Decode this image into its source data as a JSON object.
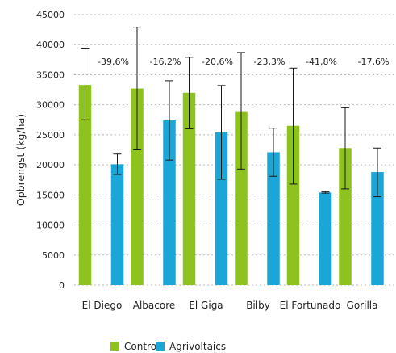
{
  "chart_data": {
    "type": "bar",
    "ylabel": "Opbrengst (kg/ha)",
    "ylim": [
      0,
      45000
    ],
    "yticks": [
      0,
      5000,
      10000,
      15000,
      20000,
      25000,
      30000,
      35000,
      40000,
      45000
    ],
    "grid": true,
    "legend_position": "bottom-center",
    "categories": [
      "El Diego",
      "Albacore",
      "El Giga",
      "Bilby",
      "El Fortunado",
      "Gorilla"
    ],
    "series": [
      {
        "name": "Controle",
        "color": "#8dc21f",
        "values": [
          33300,
          32700,
          32000,
          28800,
          26500,
          22800
        ],
        "error_low": [
          27500,
          22500,
          26000,
          19300,
          16800,
          16000
        ],
        "error_high": [
          39300,
          42900,
          37900,
          38700,
          36100,
          29500
        ]
      },
      {
        "name": "Agrivoltaics",
        "color": "#1aa6d6",
        "values": [
          20100,
          27400,
          25400,
          22100,
          15400,
          18800
        ],
        "error_low": [
          18400,
          20800,
          17600,
          18100,
          15300,
          14700
        ],
        "error_high": [
          21800,
          34000,
          33200,
          26100,
          15500,
          22800
        ]
      }
    ],
    "annotations": [
      "-39,6%",
      "-16,2%",
      "-20,6%",
      "-23,3%",
      "-41,8%",
      "-17,6%"
    ]
  }
}
